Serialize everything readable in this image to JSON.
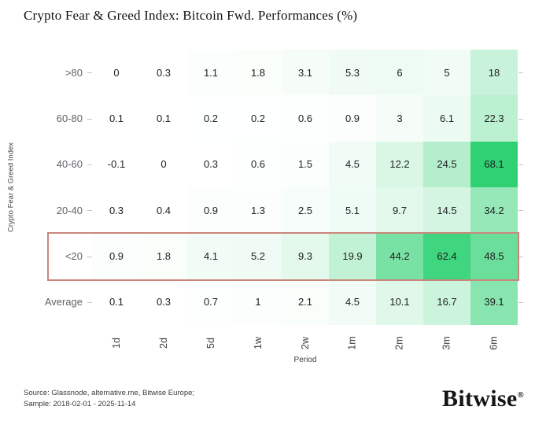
{
  "title": "Crypto Fear & Greed Index: Bitcoin Fwd. Performances (%)",
  "chart_data": {
    "type": "heatmap",
    "title": "Crypto Fear & Greed Index: Bitcoin Fwd. Performances (%)",
    "xlabel": "Period",
    "ylabel": "Crypto Fear & Greed Index",
    "columns": [
      "1d",
      "2d",
      "5d",
      "1w",
      "2w",
      "1m",
      "2m",
      "3m",
      "6m"
    ],
    "rows": [
      {
        "label": ">80",
        "values": [
          "0",
          "0.3",
          "1.1",
          "1.8",
          "3.1",
          "5.3",
          "6",
          "5",
          "18"
        ]
      },
      {
        "label": "60-80",
        "values": [
          "0.1",
          "0.1",
          "0.2",
          "0.2",
          "0.6",
          "0.9",
          "3",
          "6.1",
          "22.3"
        ]
      },
      {
        "label": "40-60",
        "values": [
          "-0.1",
          "0",
          "0.3",
          "0.6",
          "1.5",
          "4.5",
          "12.2",
          "24.5",
          "68.1"
        ]
      },
      {
        "label": "20-40",
        "values": [
          "0.3",
          "0.4",
          "0.9",
          "1.3",
          "2.5",
          "5.1",
          "9.7",
          "14.5",
          "34.2"
        ]
      },
      {
        "label": "<20",
        "values": [
          "0.9",
          "1.8",
          "4.1",
          "5.2",
          "9.3",
          "19.9",
          "44.2",
          "62.4",
          "48.5"
        ],
        "highlighted": true
      },
      {
        "label": "Average",
        "values": [
          "0.1",
          "0.3",
          "0.7",
          "1",
          "2.1",
          "4.5",
          "10.1",
          "16.7",
          "39.1"
        ]
      }
    ],
    "color_scale": {
      "min_value": 0,
      "max_value": 68.1,
      "min_color": "#ffffff",
      "max_color": "#2fd173"
    },
    "highlight": {
      "row": "<20",
      "border_color": "#cb867c"
    },
    "legend_position": "none",
    "grid": false
  },
  "footer": {
    "source_line1": "Source: Glassnode, alternative.me, Bitwise Europe;",
    "source_line2": "Sample: 2018-02-01 - 2025-11-14",
    "logo_text": "Bitwise",
    "logo_registered": "®"
  }
}
